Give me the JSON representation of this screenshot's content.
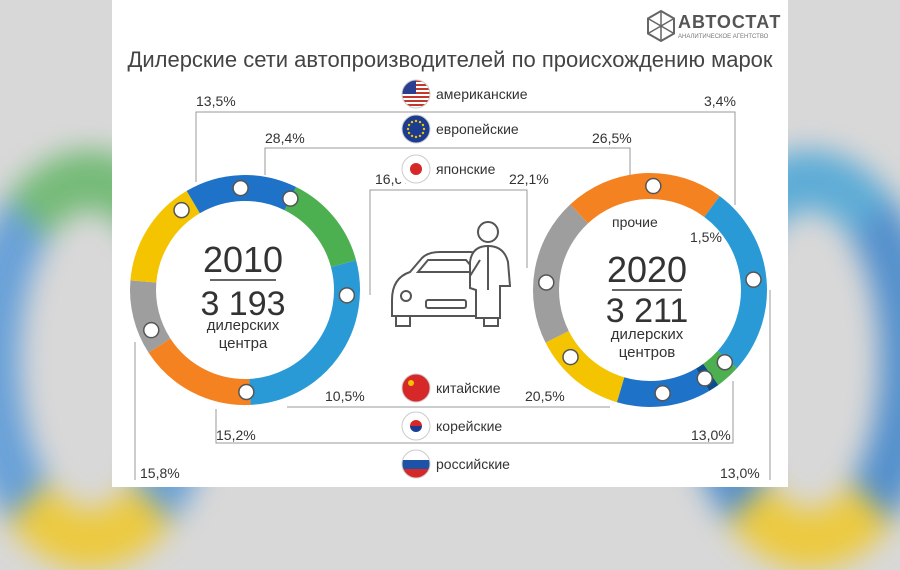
{
  "header": {
    "title": "Дилерские сети автопроизводителей по происхождению марок",
    "logo_text": "АВТОСТАТ",
    "logo_sub": "АНАЛИТИЧЕСКОЕ АГЕНТСТВО"
  },
  "legend": [
    {
      "label": "американские",
      "flag": "usa-flag-icon"
    },
    {
      "label": "европейские",
      "flag": "eu-flag-icon"
    },
    {
      "label": "японские",
      "flag": "japan-flag-icon"
    },
    {
      "label": "китайские",
      "flag": "china-flag-icon"
    },
    {
      "label": "корейские",
      "flag": "korea-flag-icon"
    },
    {
      "label": "российские",
      "flag": "russia-flag-icon"
    }
  ],
  "colors": {
    "американские": "#4caf50",
    "европейские": "#2a9ad6",
    "японские": "#f58220",
    "китайские": "#9e9e9e",
    "корейские": "#f5c400",
    "российские": "#1e73c8",
    "прочие": "#0d4d8c"
  },
  "chart_data": {
    "type": "pie",
    "charts": [
      {
        "year": "2010",
        "total": "3 193",
        "unit": "дилерских центра",
        "slices": [
          {
            "name": "американские",
            "value": 13.5,
            "label": "13,5%"
          },
          {
            "name": "европейские",
            "value": 28.4,
            "label": "28,4%"
          },
          {
            "name": "японские",
            "value": 16.6,
            "label": "16,6%"
          },
          {
            "name": "китайские",
            "value": 10.5,
            "label": "10,5%"
          },
          {
            "name": "корейские",
            "value": 15.2,
            "label": "15,2%"
          },
          {
            "name": "российские",
            "value": 15.8,
            "label": "15,8%"
          }
        ]
      },
      {
        "year": "2020",
        "total": "3 211",
        "unit": "дилерских центров",
        "other_label": "прочие",
        "slices": [
          {
            "name": "американские",
            "value": 3.4,
            "label": "3,4%"
          },
          {
            "name": "европейские",
            "value": 26.5,
            "label": "26,5%"
          },
          {
            "name": "японские",
            "value": 22.1,
            "label": "22,1%"
          },
          {
            "name": "китайские",
            "value": 20.5,
            "label": "20,5%"
          },
          {
            "name": "корейские",
            "value": 13.0,
            "label": "13,0%"
          },
          {
            "name": "российские",
            "value": 13.0,
            "label": "13,0%"
          },
          {
            "name": "прочие",
            "value": 1.5,
            "label": "1,5%"
          }
        ]
      }
    ]
  }
}
